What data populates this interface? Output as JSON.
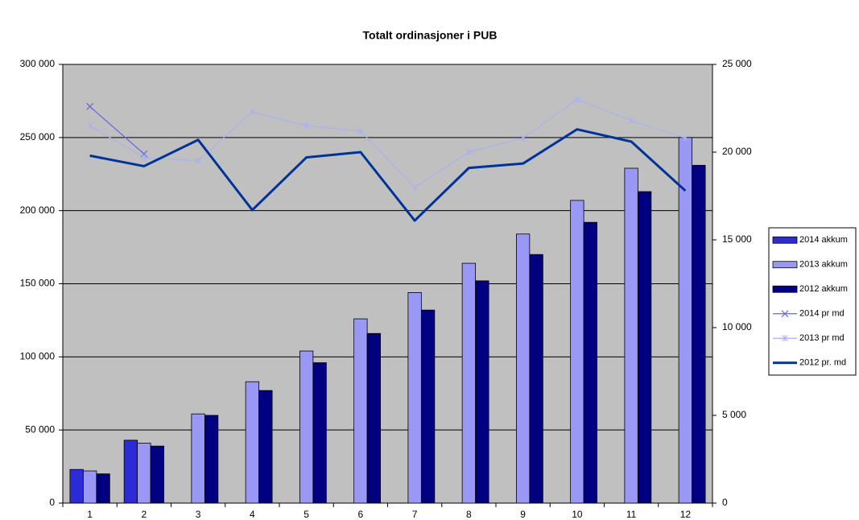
{
  "chart_data": {
    "type": "bar",
    "title": "Totalt ordinasjoner i PUB",
    "categories": [
      "1",
      "2",
      "3",
      "4",
      "5",
      "6",
      "7",
      "8",
      "9",
      "10",
      "11",
      "12"
    ],
    "series": [
      {
        "name": "2014 akkum",
        "type": "bar",
        "color": "#2b2bd8",
        "values": [
          23000,
          43000,
          null,
          null,
          null,
          null,
          null,
          null,
          null,
          null,
          null,
          null
        ]
      },
      {
        "name": "2013 akkum",
        "type": "bar",
        "color": "#9999f5",
        "values": [
          22000,
          41000,
          61000,
          83000,
          104000,
          126000,
          144000,
          164000,
          184000,
          207000,
          229000,
          250000
        ]
      },
      {
        "name": "2012 akkum",
        "type": "bar",
        "color": "#000080",
        "values": [
          20000,
          39000,
          60000,
          77000,
          96000,
          116000,
          132000,
          152000,
          170000,
          192000,
          213000,
          231000
        ]
      },
      {
        "name": "2014 pr md",
        "type": "line",
        "axis": "y2",
        "color": "#6666e0",
        "marker": "x",
        "line_width": 1.2,
        "values": [
          22600,
          19900,
          null,
          null,
          null,
          null,
          null,
          null,
          null,
          null,
          null,
          null
        ]
      },
      {
        "name": "2013 pr md",
        "type": "line",
        "axis": "y2",
        "color": "#aab0f0",
        "marker": "star",
        "line_width": 1.2,
        "values": [
          21500,
          19700,
          19500,
          22300,
          21500,
          21200,
          18000,
          20000,
          20800,
          23000,
          21800,
          20800
        ]
      },
      {
        "name": "2012 pr. md",
        "type": "line",
        "axis": "y2",
        "color": "#003399",
        "marker": "none",
        "line_width": 3,
        "values": [
          19800,
          19200,
          20700,
          16700,
          19700,
          20000,
          16100,
          19100,
          19350,
          21300,
          20600,
          17800
        ]
      }
    ],
    "ylim": [
      0,
      300000
    ],
    "yticks": [
      0,
      {
        "value": 50000,
        "label": "50 000"
      },
      {
        "value": 100000,
        "label": "100 000"
      },
      {
        "value": 150000,
        "label": "150 000"
      },
      {
        "value": 200000,
        "label": "200 000"
      },
      {
        "value": 250000,
        "label": "250 000"
      },
      {
        "value": 300000,
        "label": "300 000"
      }
    ],
    "y2lim": [
      0,
      25000
    ],
    "y2ticks": [
      0,
      {
        "value": 5000,
        "label": "5 000"
      },
      {
        "value": 10000,
        "label": "10 000"
      },
      {
        "value": 15000,
        "label": "15 000"
      },
      {
        "value": 20000,
        "label": "20 000"
      },
      {
        "value": 25000,
        "label": "25 000"
      }
    ],
    "grid": true,
    "legend": "right",
    "plot_background": "#c0c0c0"
  }
}
